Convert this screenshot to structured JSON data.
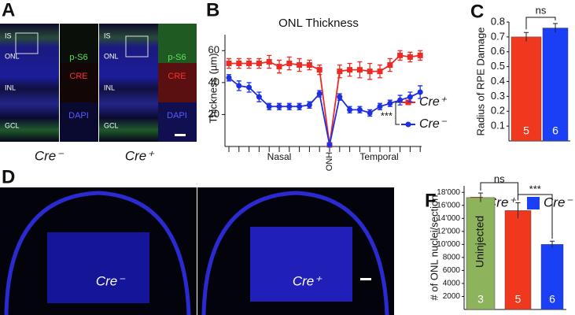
{
  "panels": {
    "letters": [
      "A",
      "B",
      "C",
      "D",
      "F"
    ]
  },
  "panel_a": {
    "layers": [
      "IS",
      "ONL",
      "INL",
      "GCL"
    ],
    "channels": [
      "p-S6",
      "CRE",
      "DAPI"
    ],
    "captions": [
      "Cre⁻",
      "Cre⁺"
    ]
  },
  "panel_d": {
    "captions": [
      "Cre⁻",
      "Cre⁺"
    ]
  },
  "chart_data": [
    {
      "type": "line",
      "title": "ONL Thickness",
      "y_label": "Thickness (µm)",
      "categories": [
        null,
        null,
        null,
        null,
        null,
        null,
        null,
        null,
        null,
        null,
        "ONH",
        null,
        null,
        null,
        null,
        null,
        null,
        null,
        null,
        null
      ],
      "x_group_labels": [
        "Nasal",
        "Temporal"
      ],
      "series": [
        {
          "name": "Cre⁺",
          "color": "#ee2a24",
          "marker": "square",
          "values": [
            52,
            52,
            52,
            52,
            53,
            50,
            52,
            51,
            51,
            48,
            1,
            47,
            48,
            48,
            47,
            47,
            51,
            57,
            56,
            57
          ],
          "errors": [
            3,
            3,
            3,
            3,
            4,
            4,
            4,
            4,
            3,
            3,
            0,
            4,
            4,
            5,
            5,
            4,
            4,
            3,
            3,
            3
          ]
        },
        {
          "name": "Cre⁻",
          "color": "#1d2fe0",
          "marker": "circle",
          "values": [
            43,
            38,
            37,
            31,
            25,
            25,
            25,
            25,
            26,
            33,
            1,
            31,
            23,
            23,
            21,
            25,
            27,
            29,
            31,
            34
          ],
          "errors": [
            2,
            3,
            3,
            3,
            2,
            2,
            2,
            2,
            2,
            2,
            0,
            2,
            2,
            2,
            2,
            2,
            2,
            3,
            3,
            4
          ]
        }
      ],
      "annotation": "***",
      "ylim": [
        0,
        70
      ],
      "yticks": [
        20,
        40,
        60
      ]
    },
    {
      "type": "bar",
      "y_label": "Radius of RPE Damage",
      "categories": [
        "Cre⁺",
        "Cre⁻"
      ],
      "colors": [
        "#f0381e",
        "#1a3ff5"
      ],
      "values": [
        0.7,
        0.76
      ],
      "errors": [
        0.03,
        0.03
      ],
      "n_labels": [
        "5",
        "6"
      ],
      "annotation": "ns",
      "ylim": [
        0,
        0.8
      ],
      "yticks": [
        0.1,
        0.2,
        0.3,
        0.4,
        0.5,
        0.6,
        0.7,
        0.8
      ]
    },
    {
      "type": "bar",
      "y_label": "# of ONL nuclei/section",
      "categories": [
        "Uninjected",
        null,
        null
      ],
      "colors": [
        "#8db35c",
        "#f0381e",
        "#1a3ff5"
      ],
      "values": [
        17200,
        15200,
        10000
      ],
      "errors": [
        700,
        1200,
        500
      ],
      "n_labels": [
        "3",
        "5",
        "6"
      ],
      "annotations": [
        "ns",
        "***"
      ],
      "ylim": [
        0,
        19000
      ],
      "yticks": [
        2000,
        4000,
        6000,
        8000,
        {
          "value": 10000,
          "label": "10'000"
        },
        {
          "value": 12000,
          "label": "12'000"
        },
        {
          "value": 14000,
          "label": "14'000"
        },
        {
          "value": 16000,
          "label": "16'000"
        },
        {
          "value": 18000,
          "label": "18'000"
        }
      ]
    }
  ]
}
